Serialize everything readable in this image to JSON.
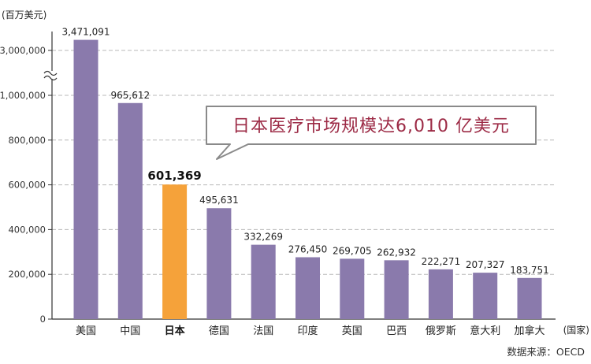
{
  "chart_data": {
    "type": "bar",
    "unit_label": "(百万美元)",
    "xlabel": "(国家)",
    "categories": [
      "美国",
      "中国",
      "日本",
      "德国",
      "法国",
      "印度",
      "英国",
      "巴西",
      "俄罗斯",
      "意大利",
      "加拿大"
    ],
    "values": [
      3471091,
      965612,
      601369,
      495631,
      332269,
      276450,
      269705,
      262932,
      222271,
      207327,
      183751
    ],
    "value_labels": [
      "3,471,091",
      "965,612",
      "601,369",
      "495,631",
      "332,269",
      "276,450",
      "269,705",
      "262,932",
      "222,271",
      "207,327",
      "183,751"
    ],
    "y_ticks": [
      {
        "value": 0,
        "label": "0"
      },
      {
        "value": 200000,
        "label": "200,000"
      },
      {
        "value": 400000,
        "label": "400,000"
      },
      {
        "value": 600000,
        "label": "600,000"
      },
      {
        "value": 800000,
        "label": "800,000"
      },
      {
        "value": 1000000,
        "label": "1,000,000"
      },
      {
        "value": 3000000,
        "label": "3,000,000"
      }
    ],
    "axis_break": {
      "from": 1000000,
      "to": 3000000
    },
    "highlight_index": 2,
    "bar_color": "#8a7aac",
    "highlight_color": "#f5a23a",
    "grid": true,
    "annotation": "日本医疗市场规模达6,010 亿美元",
    "source": "数据来源：OECD"
  }
}
